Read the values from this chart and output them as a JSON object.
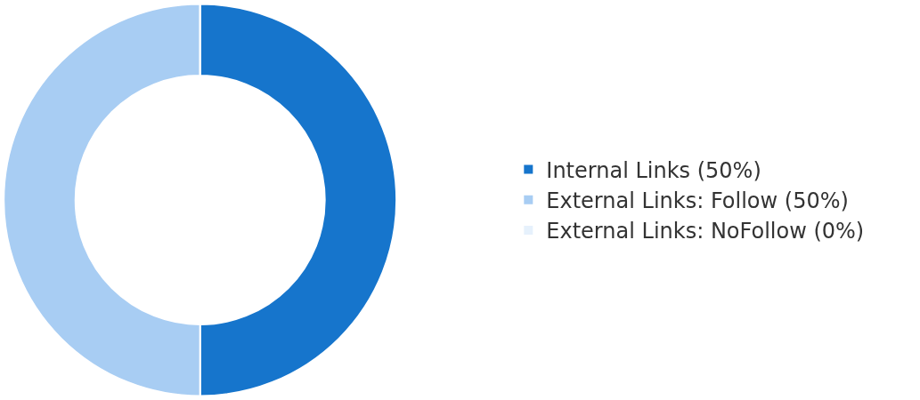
{
  "chart_data": {
    "type": "donut",
    "categories": [
      "Internal Links (50%)",
      "External Links: Follow (50%)",
      "External Links: NoFollow (0%)"
    ],
    "values": [
      50,
      50,
      0
    ],
    "colors": [
      "#1675cc",
      "#a8cdf3",
      "#e6f1fc"
    ],
    "legend": "right"
  }
}
